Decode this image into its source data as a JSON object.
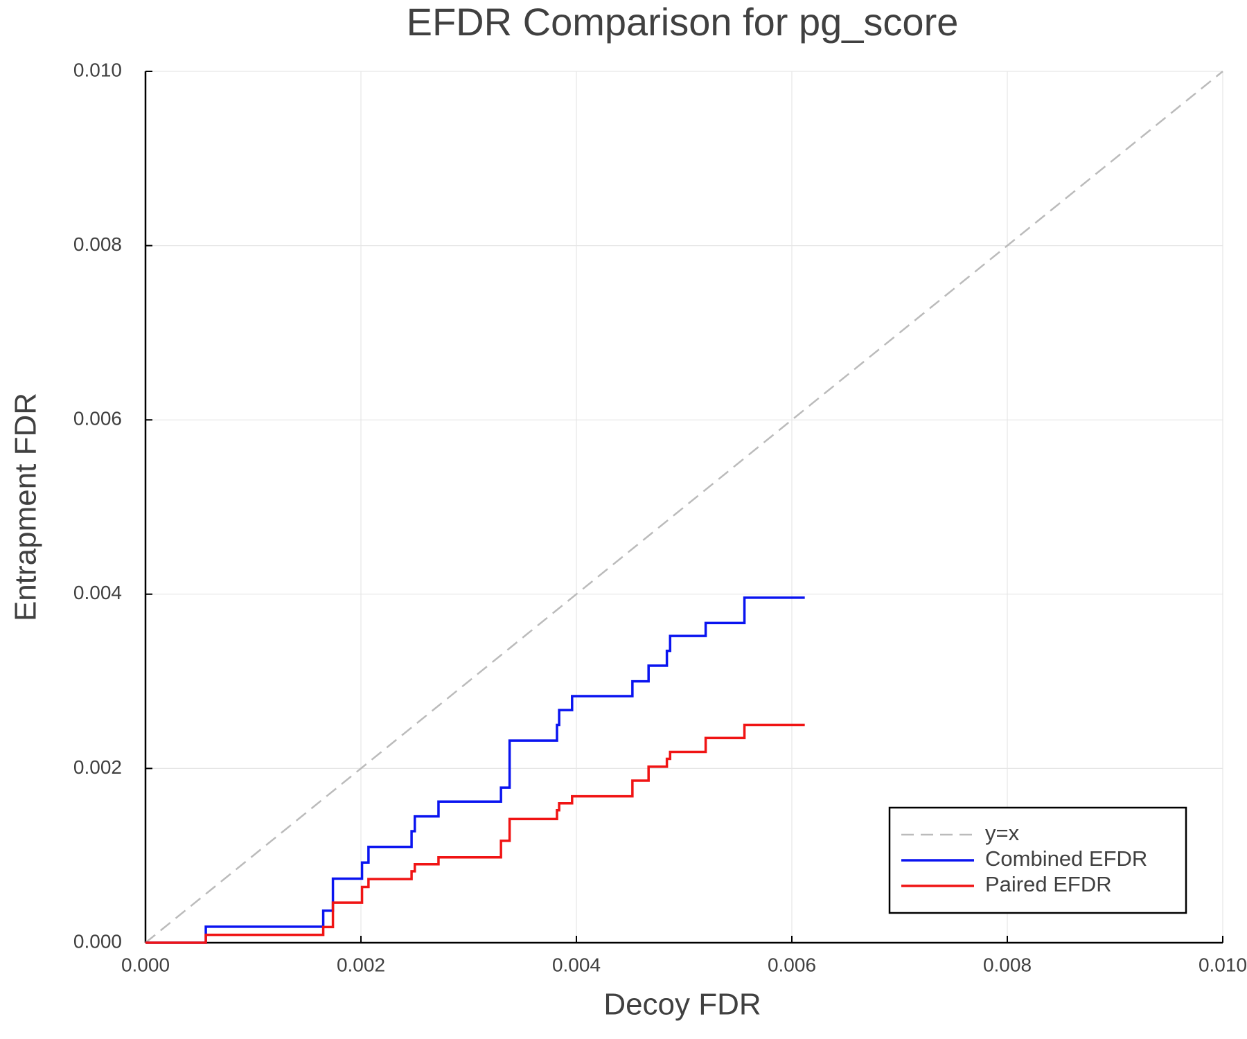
{
  "chart_data": {
    "type": "line",
    "step": "post",
    "title": "EFDR Comparison for pg_score",
    "xlabel": "Decoy FDR",
    "ylabel": "Entrapment FDR",
    "xlim": [
      0,
      0.01
    ],
    "ylim": [
      0,
      0.01
    ],
    "xticks": [
      {
        "value": 0,
        "label": "0.000"
      },
      {
        "value": 0.002,
        "label": "0.002"
      },
      {
        "value": 0.004,
        "label": "0.004"
      },
      {
        "value": 0.006,
        "label": "0.006"
      },
      {
        "value": 0.008,
        "label": "0.008"
      },
      {
        "value": 0.01,
        "label": "0.010"
      }
    ],
    "yticks": [
      {
        "value": 0,
        "label": "0.000"
      },
      {
        "value": 0.002,
        "label": "0.002"
      },
      {
        "value": 0.004,
        "label": "0.004"
      },
      {
        "value": 0.006,
        "label": "0.006"
      },
      {
        "value": 0.008,
        "label": "0.008"
      },
      {
        "value": 0.01,
        "label": "0.010"
      }
    ],
    "grid": true,
    "legend": "bottom-right",
    "series": [
      {
        "name": "y=x",
        "color": "#bbbbbb",
        "dashed": true,
        "step": false,
        "x": [
          0,
          0.01
        ],
        "values": [
          0,
          0.01
        ]
      },
      {
        "name": "Combined EFDR",
        "color": "#0a14f0",
        "dashed": false,
        "step": true,
        "x": [
          0,
          0.00056,
          0.00165,
          0.00174,
          0.00201,
          0.00207,
          0.00247,
          0.0025,
          0.00272,
          0.0033,
          0.00338,
          0.00382,
          0.00384,
          0.00396,
          0.00452,
          0.00467,
          0.00484,
          0.00487,
          0.0052,
          0.00556,
          0.00612
        ],
        "values": [
          0,
          0.000184,
          0.000368,
          0.000735,
          0.00092,
          0.0011,
          0.00128,
          0.00145,
          0.00162,
          0.00178,
          0.00232,
          0.0025,
          0.00267,
          0.00283,
          0.003,
          0.00318,
          0.00335,
          0.00352,
          0.00367,
          0.00396,
          0.00396
        ]
      },
      {
        "name": "Paired EFDR",
        "color": "#f01414",
        "dashed": false,
        "step": true,
        "x": [
          0,
          0.00056,
          0.00165,
          0.00174,
          0.00201,
          0.00207,
          0.00247,
          0.0025,
          0.00272,
          0.0033,
          0.00338,
          0.00382,
          0.00384,
          0.00396,
          0.00452,
          0.00467,
          0.00484,
          0.00487,
          0.0052,
          0.00556,
          0.00612
        ],
        "values": [
          0,
          9e-05,
          0.00018,
          0.00046,
          0.00064,
          0.00073,
          0.00082,
          0.0009,
          0.00098,
          0.00117,
          0.00142,
          0.00152,
          0.0016,
          0.00168,
          0.00186,
          0.00202,
          0.00211,
          0.00219,
          0.00235,
          0.0025,
          0.0025
        ]
      }
    ]
  }
}
